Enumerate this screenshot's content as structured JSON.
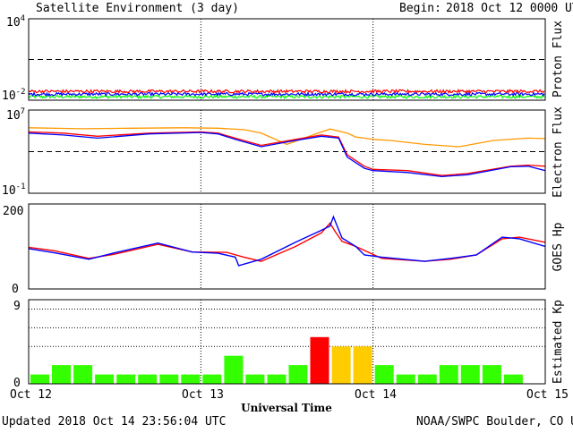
{
  "header": {
    "title": "Satellite Environment (3 day)",
    "begin_label": "Begin:",
    "begin_value": "2018 Oct 12 0000 UTC"
  },
  "footer": {
    "updated": "Updated 2018 Oct 14 23:56:04 UTC",
    "credit": "NOAA/SWPC Boulder, CO USA",
    "xlabel": "Universal Time"
  },
  "colors": {
    "red": "#ff0000",
    "blue": "#0000ff",
    "green": "#00ff00",
    "orange": "#ff9900",
    "kp_green": "#33ff00",
    "kp_yellow": "#ffcc00",
    "kp_red": "#ff0000"
  },
  "chart_data": [
    {
      "type": "line",
      "panel": "proton",
      "ylabel": "Proton Flux",
      "log_scale": true,
      "ylim": [
        0.01,
        10000
      ],
      "y_tick_labels": [
        "10^4",
        "10^-2"
      ],
      "threshold": 10,
      "x_tick_labels": [
        "Oct 12",
        "Oct 13",
        "Oct 14",
        "Oct 15"
      ],
      "x_range_days": [
        0,
        3
      ],
      "series": [
        {
          "color": "red",
          "level": 0.045
        },
        {
          "color": "blue",
          "level": 0.028
        },
        {
          "color": "green",
          "level": 0.018
        }
      ]
    },
    {
      "type": "line",
      "panel": "electron",
      "ylabel": "Electron Flux",
      "log_scale": true,
      "ylim": [
        0.1,
        10000000
      ],
      "y_tick_labels": [
        "10^7",
        "10^-1"
      ],
      "threshold": 1000,
      "series": [
        {
          "color": "orange",
          "x": [
            0,
            0.3,
            0.6,
            0.9,
            1.1,
            1.25,
            1.35,
            1.5,
            1.65,
            1.75,
            1.85,
            1.9,
            1.95,
            2.0,
            2.1,
            2.3,
            2.5,
            2.7,
            2.9,
            3.0
          ],
          "y": [
            200000,
            160000,
            180000,
            200000,
            180000,
            130000,
            60000,
            5000,
            40000,
            150000,
            60000,
            25000,
            20000,
            15000,
            12000,
            5000,
            3000,
            12000,
            20000,
            18000
          ]
        },
        {
          "color": "red",
          "x": [
            0,
            0.2,
            0.4,
            0.7,
            1.0,
            1.1,
            1.2,
            1.35,
            1.55,
            1.7,
            1.8,
            1.85,
            1.95,
            2.0,
            2.2,
            2.4,
            2.55,
            2.8,
            2.9,
            3.0
          ],
          "y": [
            80000,
            60000,
            30000,
            60000,
            80000,
            60000,
            20000,
            4000,
            15000,
            40000,
            25000,
            500,
            40,
            20,
            15,
            5,
            8,
            40,
            50,
            40
          ]
        },
        {
          "color": "blue",
          "x": [
            0,
            0.2,
            0.4,
            0.7,
            1.0,
            1.1,
            1.2,
            1.35,
            1.55,
            1.7,
            1.8,
            1.85,
            1.95,
            2.0,
            2.2,
            2.4,
            2.55,
            2.8,
            2.9,
            3.0
          ],
          "y": [
            60000,
            40000,
            20000,
            50000,
            70000,
            50000,
            15000,
            3000,
            12000,
            30000,
            20000,
            300,
            25,
            15,
            10,
            4,
            6,
            35,
            40,
            15
          ]
        }
      ]
    },
    {
      "type": "line",
      "panel": "goes_hp",
      "ylabel": "GOES Hp",
      "ylim": [
        0,
        200
      ],
      "y_tick_labels": [
        "200",
        "0"
      ],
      "series": [
        {
          "color": "red",
          "x": [
            0,
            0.15,
            0.35,
            0.5,
            0.75,
            0.95,
            1.15,
            1.25,
            1.35,
            1.55,
            1.7,
            1.75,
            1.78,
            1.82,
            1.9,
            2.05,
            2.3,
            2.45,
            2.6,
            2.75,
            2.85,
            3.0
          ],
          "y": [
            98,
            90,
            72,
            82,
            105,
            87,
            86,
            75,
            65,
            100,
            132,
            155,
            135,
            112,
            100,
            72,
            65,
            70,
            80,
            118,
            122,
            110
          ]
        },
        {
          "color": "blue",
          "x": [
            0,
            0.15,
            0.35,
            0.5,
            0.75,
            0.95,
            1.1,
            1.2,
            1.22,
            1.35,
            1.55,
            1.7,
            1.75,
            1.77,
            1.82,
            1.9,
            1.95,
            2.05,
            2.3,
            2.45,
            2.6,
            2.75,
            2.85,
            3.0
          ],
          "y": [
            95,
            85,
            70,
            85,
            108,
            87,
            84,
            75,
            55,
            70,
            110,
            138,
            148,
            170,
            120,
            100,
            80,
            75,
            65,
            72,
            80,
            122,
            118,
            100
          ]
        }
      ]
    },
    {
      "type": "bar",
      "panel": "kp",
      "ylabel": "Estimated Kp",
      "ylim": [
        0,
        9
      ],
      "y_tick_labels": [
        "9",
        "0"
      ],
      "x_tick_labels": [
        "Oct 12",
        "Oct 13",
        "Oct 14",
        "Oct 15"
      ],
      "values": [
        1,
        2,
        2,
        1,
        1,
        1,
        1,
        1,
        1,
        3,
        1,
        1,
        2,
        5,
        4,
        4,
        2,
        1,
        1,
        2,
        2,
        2,
        1,
        0
      ],
      "levels": [
        "green",
        "green",
        "green",
        "green",
        "green",
        "green",
        "green",
        "green",
        "green",
        "green",
        "green",
        "green",
        "green",
        "red",
        "yellow",
        "yellow",
        "green",
        "green",
        "green",
        "green",
        "green",
        "green",
        "green",
        "green"
      ]
    }
  ]
}
